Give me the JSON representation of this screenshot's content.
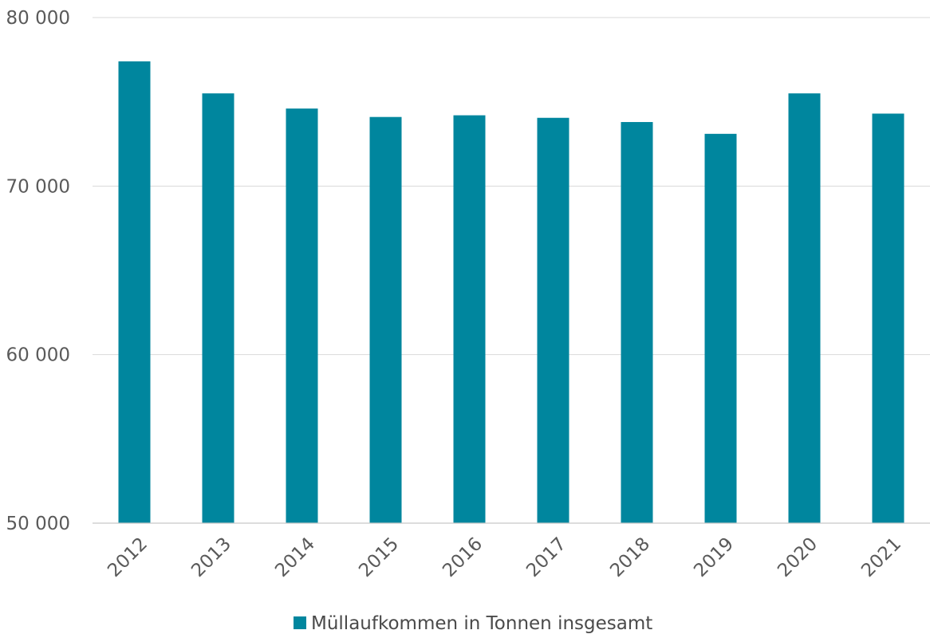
{
  "chart_data": {
    "type": "bar",
    "categories": [
      "2012",
      "2013",
      "2014",
      "2015",
      "2016",
      "2017",
      "2018",
      "2019",
      "2020",
      "2021"
    ],
    "series": [
      {
        "name": "Müllaufkommen in Tonnen insgesamt",
        "values": [
          77400,
          75500,
          74600,
          74100,
          74200,
          74050,
          73800,
          73100,
          75500,
          74300
        ],
        "color": "#00869e"
      }
    ],
    "yticks": [
      50000,
      60000,
      70000,
      80000
    ],
    "ytick_labels": [
      "50 000",
      "60 000",
      "70 000",
      "80 000"
    ],
    "ylim": [
      50000,
      80000
    ],
    "grid": true,
    "legend_position": "bottom",
    "title": "",
    "xlabel": "",
    "ylabel": ""
  }
}
